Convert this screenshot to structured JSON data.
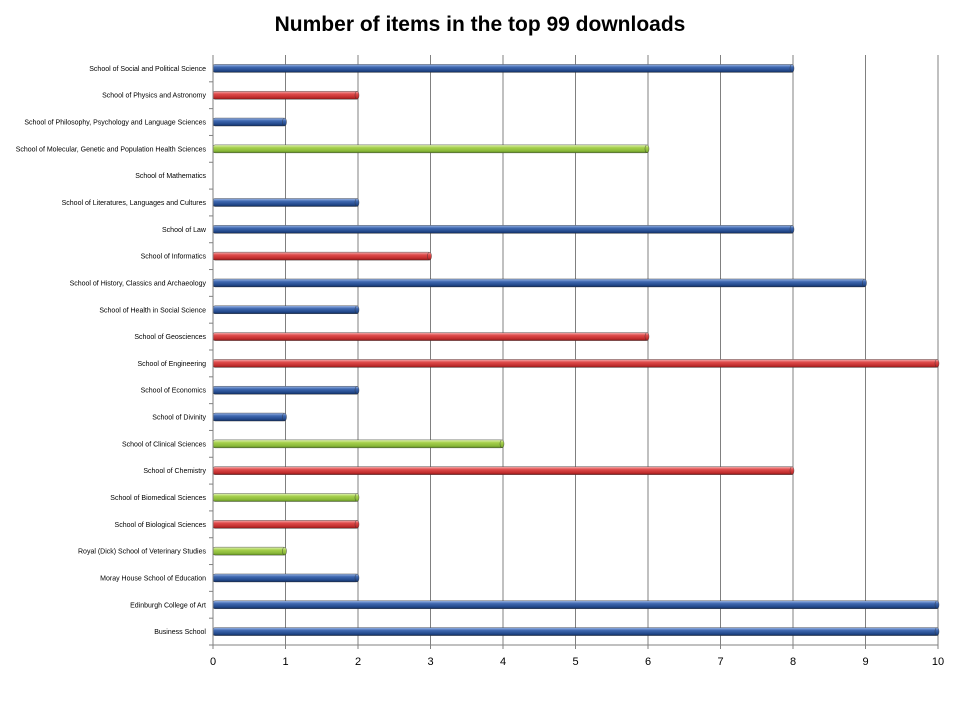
{
  "chart_data": {
    "type": "bar",
    "orientation": "horizontal",
    "title": "Number of items in the top 99 downloads",
    "xlabel": "",
    "ylabel": "",
    "xlim": [
      0,
      10
    ],
    "xticks": [
      "0",
      "1",
      "2",
      "3",
      "4",
      "5",
      "6",
      "7",
      "8",
      "9",
      "10"
    ],
    "grid": "vertical",
    "legend": "none",
    "colors": {
      "blue": "#2f5597",
      "red": "#d94040",
      "green": "#9bc53d"
    },
    "categories": [
      "Business School",
      "Edinburgh College of Art",
      "Moray House School of Education",
      "Royal (Dick) School of Veterinary Studies",
      "School of Biological Sciences",
      "School of Biomedical Sciences",
      "School of Chemistry",
      "School of Clinical Sciences",
      "School of Divinity",
      "School of Economics",
      "School of Engineering",
      "School of Geosciences",
      "School of Health in Social Science",
      "School of History, Classics and Archaeology",
      "School of Informatics",
      "School of Law",
      "School of Literatures, Languages and Cultures",
      "School of Mathematics",
      "School of Molecular, Genetic and Population Health Sciences",
      "School of Philosophy, Psychology and Language Sciences",
      "School of Physics and Astronomy",
      "School of Social and Political Science"
    ],
    "values": [
      10,
      10,
      2,
      1,
      2,
      2,
      8,
      4,
      1,
      2,
      10,
      6,
      2,
      9,
      3,
      8,
      2,
      0,
      6,
      1,
      2,
      8
    ],
    "bar_colors": [
      "blue",
      "blue",
      "blue",
      "green",
      "red",
      "green",
      "red",
      "green",
      "blue",
      "blue",
      "red",
      "red",
      "blue",
      "blue",
      "red",
      "blue",
      "blue",
      "blue",
      "green",
      "blue",
      "red",
      "blue"
    ]
  }
}
